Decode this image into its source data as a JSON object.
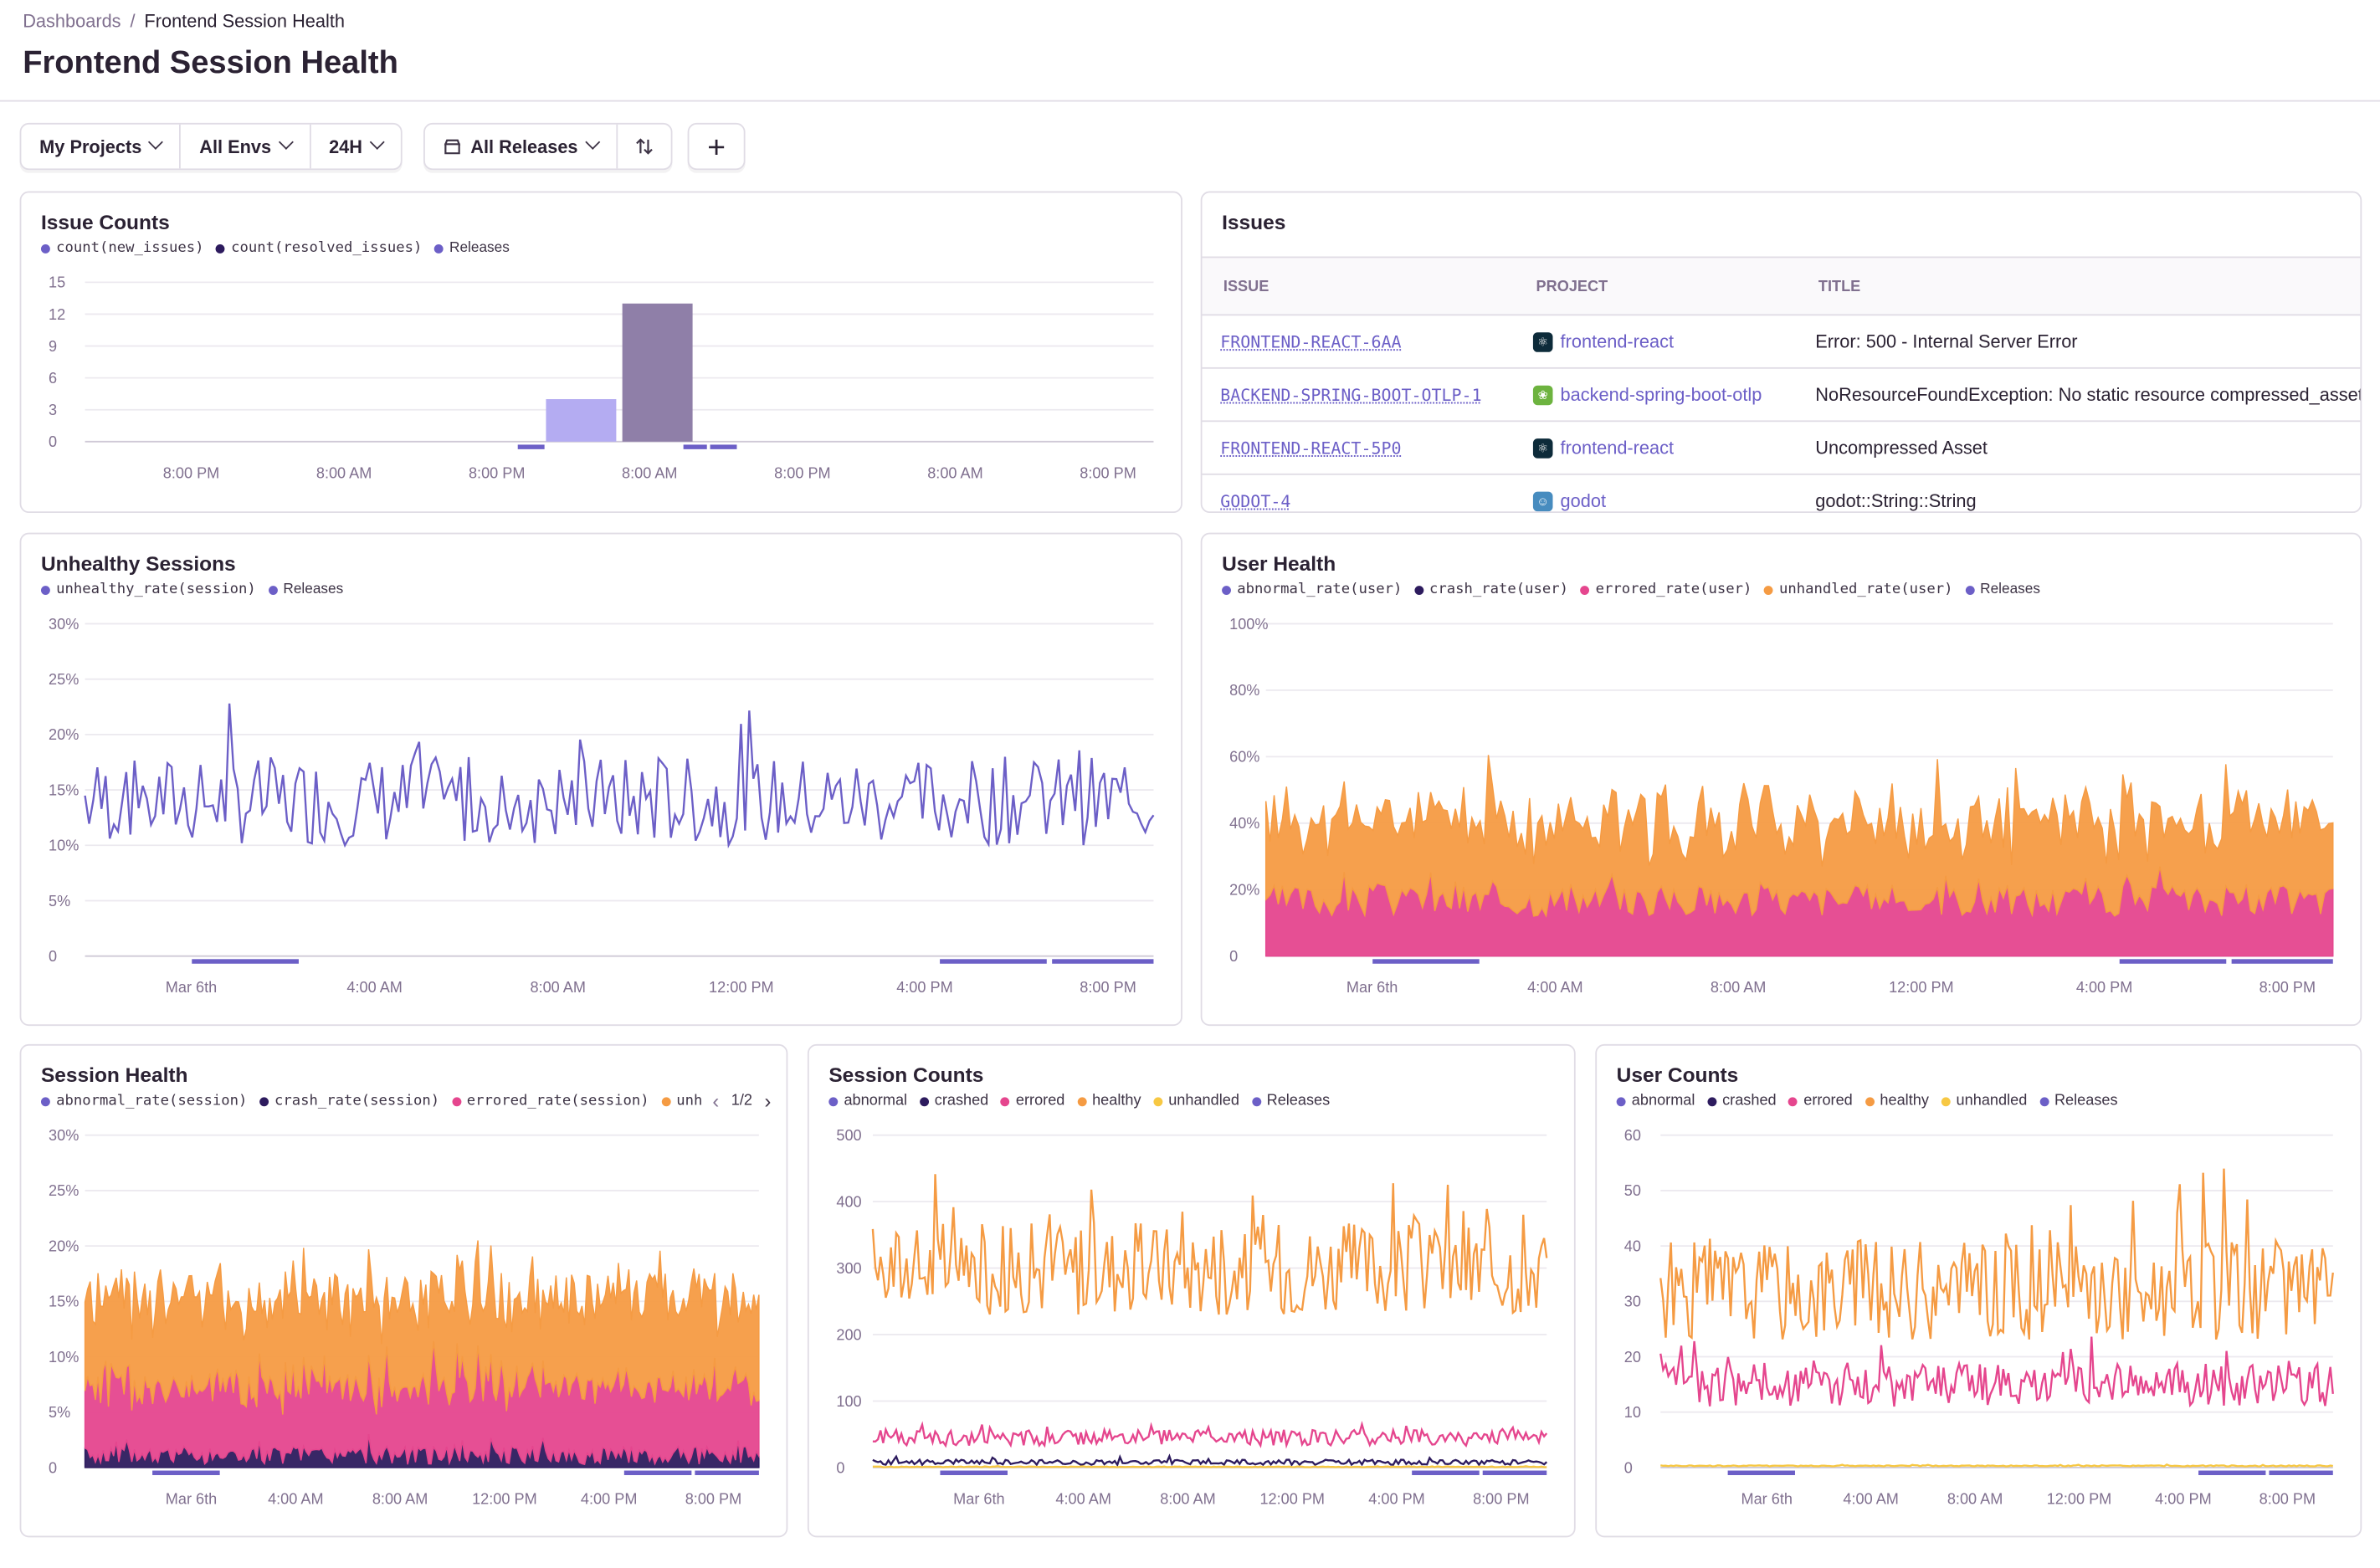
{
  "breadcrumb": {
    "parent": "Dashboards",
    "separator": "/",
    "current": "Frontend Session Health"
  },
  "page_title": "Frontend Session Health",
  "filters": {
    "projects": "My Projects",
    "envs": "All Envs",
    "period": "24H",
    "releases": "All Releases"
  },
  "colors": {
    "purple": "#6c5fc7",
    "dark": "#2d1b5e",
    "pink": "#e5468e",
    "orange": "#f59b43",
    "yellow": "#f7c843",
    "grid": "#ece9ef"
  },
  "issues": {
    "title": "Issues",
    "columns": [
      "ISSUE",
      "PROJECT",
      "TITLE"
    ],
    "rows": [
      {
        "issue": "FRONTEND-REACT-6AA",
        "project": "frontend-react",
        "icon": "react-icon",
        "title": "Error: 500 - Internal Server Error"
      },
      {
        "issue": "BACKEND-SPRING-BOOT-OTLP-1",
        "project": "backend-spring-boot-otlp",
        "icon": "spring-icon",
        "title": "NoResourceFoundException: No static resource compressed_asset"
      },
      {
        "issue": "FRONTEND-REACT-5P0",
        "project": "frontend-react",
        "icon": "react-icon",
        "title": "Uncompressed Asset"
      },
      {
        "issue": "GODOT-4",
        "project": "godot",
        "icon": "godot-icon",
        "title": "godot::String::String"
      }
    ]
  },
  "issue_counts": {
    "title": "Issue Counts",
    "legend": [
      "count(new_issues)",
      "count(resolved_issues)",
      "Releases"
    ]
  },
  "unhealthy_sessions": {
    "title": "Unhealthy Sessions",
    "legend": [
      "unhealthy_rate(session)",
      "Releases"
    ]
  },
  "user_health": {
    "title": "User Health",
    "legend": [
      "abnormal_rate(user)",
      "crash_rate(user)",
      "errored_rate(user)",
      "unhandled_rate(user)",
      "Releases"
    ]
  },
  "session_health": {
    "title": "Session Health",
    "legend": [
      "abnormal_rate(session)",
      "crash_rate(session)",
      "errored_rate(session)",
      "unhandled_rate(s"
    ],
    "pager": "1/2"
  },
  "session_counts": {
    "title": "Session Counts",
    "legend": [
      "abnormal",
      "crashed",
      "errored",
      "healthy",
      "unhandled",
      "Releases"
    ]
  },
  "user_counts": {
    "title": "User Counts",
    "legend": [
      "abnormal",
      "crashed",
      "errored",
      "healthy",
      "unhandled",
      "Releases"
    ]
  },
  "chart_data": [
    {
      "id": "issue_counts",
      "type": "bar",
      "title": "Issue Counts",
      "ylim": [
        0,
        15
      ],
      "yticks": [
        "15",
        "12",
        "9",
        "6",
        "3",
        "0"
      ],
      "xticks": [
        "8:00 PM",
        "8:00 AM",
        "8:00 PM",
        "8:00 AM",
        "8:00 PM",
        "8:00 AM",
        "8:00 PM"
      ],
      "series": [
        {
          "name": "count(new_issues)",
          "color": "#b4acf2",
          "values": [
            0,
            0,
            0,
            0,
            0,
            0,
            4,
            0,
            0,
            0,
            0,
            0,
            0,
            0
          ]
        },
        {
          "name": "count(resolved_issues)",
          "color": "#8f7fa8",
          "values": [
            0,
            0,
            0,
            0,
            0,
            0,
            0,
            13,
            0,
            0,
            0,
            0,
            0,
            0
          ]
        }
      ],
      "releases": [
        [
          0.405,
          0.43
        ],
        [
          0.56,
          0.582
        ],
        [
          0.585,
          0.61
        ]
      ]
    },
    {
      "id": "unhealthy_sessions",
      "type": "line",
      "title": "Unhealthy Sessions",
      "ylim": [
        0,
        30
      ],
      "yticks": [
        "30%",
        "25%",
        "20%",
        "15%",
        "10%",
        "5%",
        "0"
      ],
      "xticks": [
        "Mar 6th",
        "4:00 AM",
        "8:00 AM",
        "12:00 PM",
        "4:00 PM",
        "8:00 PM"
      ],
      "series": [
        {
          "name": "unhealthy_rate(session)",
          "color": "#6c5fc7",
          "baseline": 14,
          "spread": 4,
          "seed": 7
        }
      ],
      "releases": [
        [
          0.1,
          0.2
        ],
        [
          0.8,
          0.9
        ],
        [
          0.905,
          1.0
        ]
      ]
    },
    {
      "id": "user_health",
      "type": "area",
      "title": "User Health",
      "ylim": [
        0,
        100
      ],
      "yticks": [
        "100%",
        "80%",
        "60%",
        "40%",
        "20%",
        "0"
      ],
      "xticks": [
        "Mar 6th",
        "4:00 AM",
        "8:00 AM",
        "12:00 PM",
        "4:00 PM",
        "8:00 PM"
      ],
      "series": [
        {
          "name": "errored_rate(user)",
          "color": "#e5468e",
          "baseline": 28,
          "spread": 8,
          "seed": 3
        },
        {
          "name": "unhandled_rate(user)",
          "color": "#f59b43",
          "baseline": 38,
          "spread": 14,
          "seed": 11
        }
      ],
      "releases": [
        [
          0.1,
          0.2
        ],
        [
          0.8,
          0.9
        ],
        [
          0.905,
          1.0
        ]
      ]
    },
    {
      "id": "session_health",
      "type": "area",
      "title": "Session Health",
      "ylim": [
        0,
        30
      ],
      "yticks": [
        "30%",
        "25%",
        "20%",
        "15%",
        "10%",
        "5%",
        "0"
      ],
      "xticks": [
        "Mar 6th",
        "4:00 AM",
        "8:00 AM",
        "12:00 PM",
        "4:00 PM",
        "8:00 PM"
      ],
      "series": [
        {
          "name": "crash_rate(session)",
          "color": "#2d1b5e",
          "baseline": 2,
          "spread": 1.5,
          "seed": 5
        },
        {
          "name": "errored_rate(session)",
          "color": "#e5468e",
          "baseline": 11,
          "spread": 3,
          "seed": 9
        },
        {
          "name": "unhandled_rate(session)",
          "color": "#f59b43",
          "baseline": 14,
          "spread": 4,
          "seed": 13
        }
      ],
      "releases": [
        [
          0.1,
          0.2
        ],
        [
          0.8,
          0.9
        ],
        [
          0.905,
          1.0
        ]
      ]
    },
    {
      "id": "session_counts",
      "type": "line",
      "title": "Session Counts",
      "ylim": [
        0,
        500
      ],
      "yticks": [
        "500",
        "400",
        "300",
        "200",
        "100",
        "0"
      ],
      "xticks": [
        "Mar 6th",
        "4:00 AM",
        "8:00 AM",
        "12:00 PM",
        "4:00 PM",
        "8:00 PM"
      ],
      "series": [
        {
          "name": "healthy",
          "color": "#f59b43",
          "baseline": 300,
          "spread": 70,
          "seed": 17
        },
        {
          "name": "errored",
          "color": "#e5468e",
          "baseline": 45,
          "spread": 12,
          "seed": 21
        },
        {
          "name": "crashed",
          "color": "#2d1b5e",
          "baseline": 8,
          "spread": 4,
          "seed": 23
        },
        {
          "name": "unhandled",
          "color": "#f7c843",
          "baseline": 1,
          "spread": 0.5,
          "seed": 29
        }
      ],
      "releases": [
        [
          0.1,
          0.2
        ],
        [
          0.8,
          0.9
        ],
        [
          0.905,
          1.0
        ]
      ]
    },
    {
      "id": "user_counts",
      "type": "line",
      "title": "User Counts",
      "ylim": [
        0,
        60
      ],
      "yticks": [
        "60",
        "50",
        "40",
        "30",
        "20",
        "10",
        "0"
      ],
      "xticks": [
        "Mar 6th",
        "4:00 AM",
        "8:00 AM",
        "12:00 PM",
        "4:00 PM",
        "8:00 PM"
      ],
      "series": [
        {
          "name": "healthy",
          "color": "#f59b43",
          "baseline": 32,
          "spread": 9,
          "seed": 31
        },
        {
          "name": "errored",
          "color": "#e5468e",
          "baseline": 15,
          "spread": 4,
          "seed": 37
        },
        {
          "name": "unhandled",
          "color": "#f7c843",
          "baseline": 0.3,
          "spread": 0.1,
          "seed": 41
        }
      ],
      "releases": [
        [
          0.1,
          0.2
        ],
        [
          0.8,
          0.9
        ],
        [
          0.905,
          1.0
        ]
      ]
    }
  ]
}
